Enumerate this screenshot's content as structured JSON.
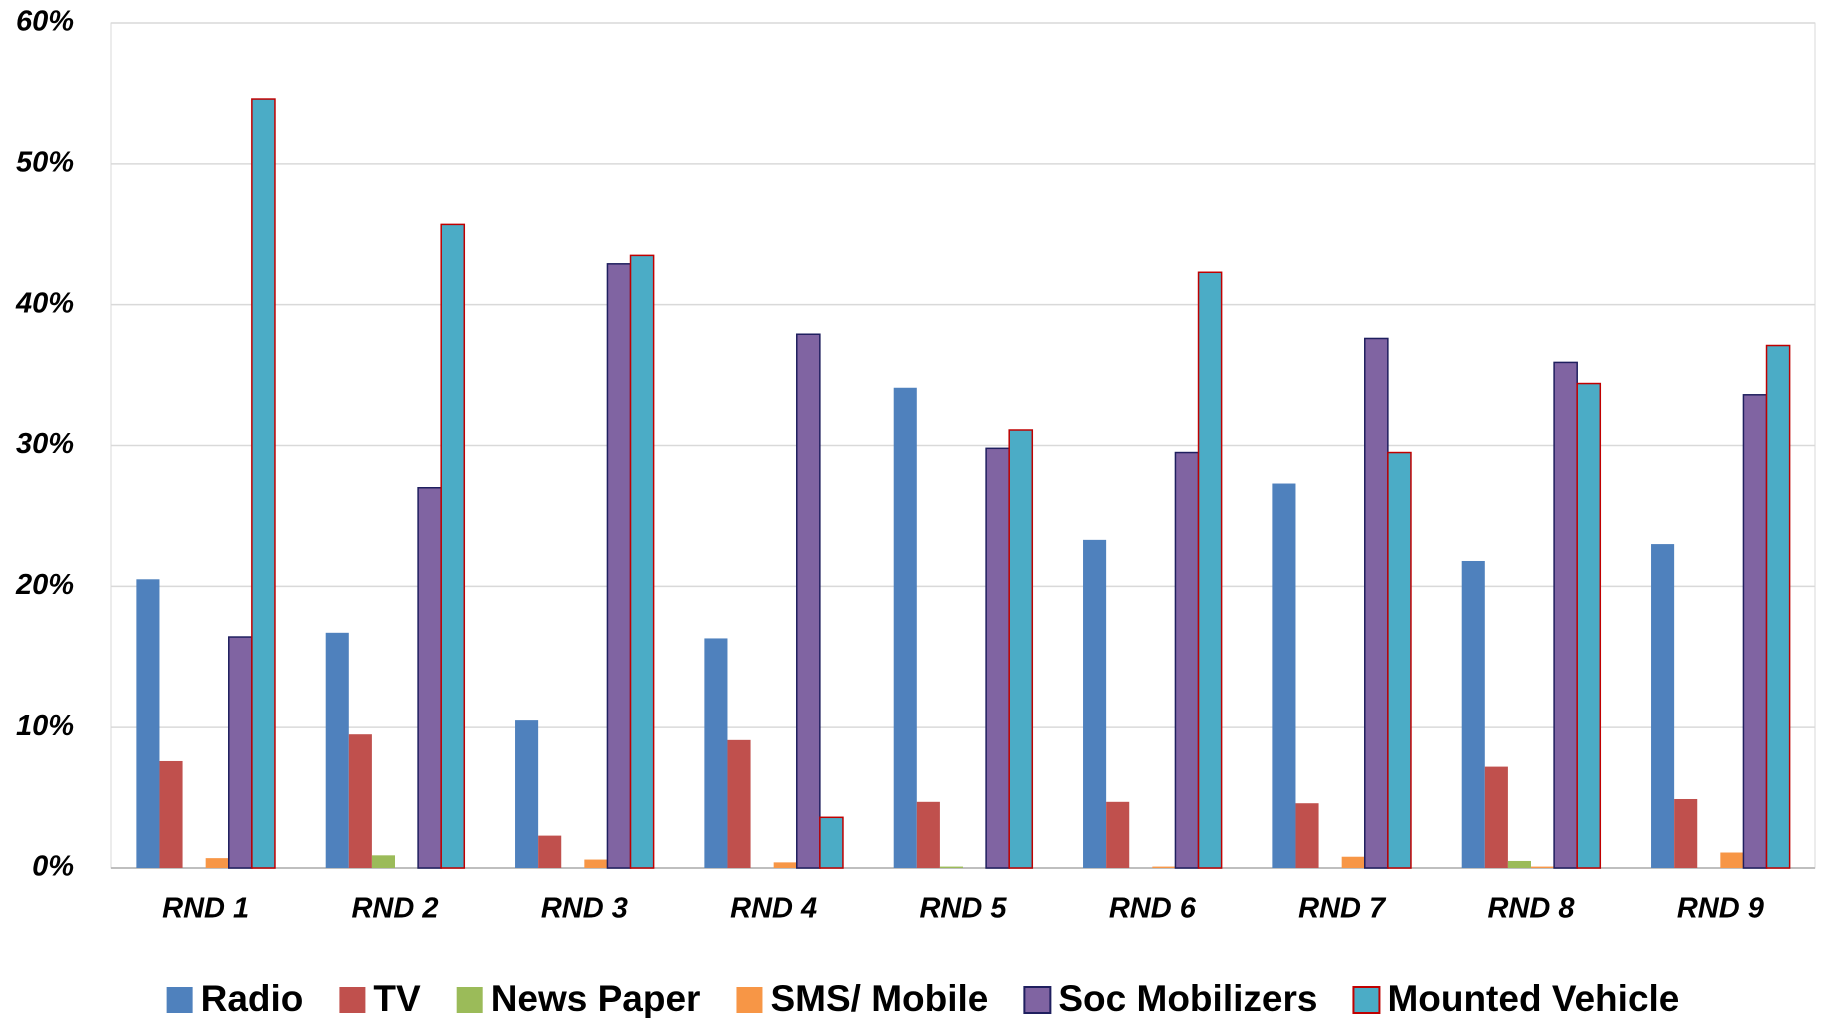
{
  "chart_data": {
    "type": "bar",
    "categories": [
      "RND 1",
      "RND 2",
      "RND 3",
      "RND 4",
      "RND 5",
      "RND 6",
      "RND 7",
      "RND 8",
      "RND 9"
    ],
    "series": [
      {
        "name": "Radio",
        "color": "#4f81bd",
        "values": [
          20.5,
          16.7,
          10.5,
          16.3,
          34.1,
          23.3,
          27.3,
          21.8,
          23.0
        ]
      },
      {
        "name": "TV",
        "color": "#c0504d",
        "values": [
          7.6,
          9.5,
          2.3,
          9.1,
          4.7,
          4.7,
          4.6,
          7.2,
          4.9
        ]
      },
      {
        "name": "News Paper",
        "color": "#9bbb59",
        "values": [
          0,
          0.9,
          0,
          0,
          0.1,
          0,
          0,
          0.5,
          0
        ]
      },
      {
        "name": "SMS/ Mobile",
        "color": "#f79646",
        "values": [
          0.7,
          0,
          0.6,
          0.4,
          0,
          0.1,
          0.8,
          0.1,
          1.1
        ]
      },
      {
        "name": "Soc Mobilizers",
        "color": "#8064a2",
        "stroke": "#1f1f5f",
        "values": [
          16.4,
          27.0,
          42.9,
          37.9,
          29.8,
          29.5,
          37.6,
          35.9,
          33.6
        ]
      },
      {
        "name": "Mounted Vehicle",
        "color": "#4bacc6",
        "stroke": "#c00000",
        "values": [
          54.6,
          45.7,
          43.5,
          3.6,
          31.1,
          42.3,
          29.5,
          34.4,
          37.1
        ]
      }
    ],
    "ylim": [
      0,
      60
    ],
    "yticks": [
      {
        "value": 0,
        "label": "0%"
      },
      {
        "value": 10,
        "label": "10%"
      },
      {
        "value": 20,
        "label": "20%"
      },
      {
        "value": 30,
        "label": "30%"
      },
      {
        "value": 40,
        "label": "40%"
      },
      {
        "value": 50,
        "label": "50%"
      },
      {
        "value": 60,
        "label": "60%"
      }
    ],
    "grid": true,
    "legend": "bottom"
  }
}
